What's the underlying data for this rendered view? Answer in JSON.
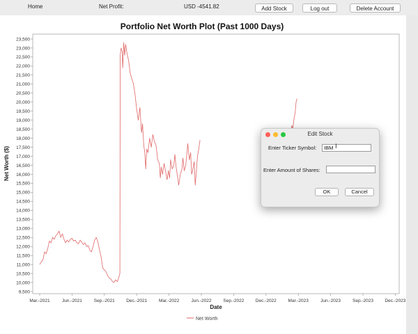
{
  "topbar": {
    "home_label": "Home",
    "net_profit_label": "Net Profit:",
    "net_profit_value": "USD -4541.82",
    "add_stock_label": "Add Stock",
    "logout_label": "Log out",
    "delete_account_label": "Delete Account"
  },
  "chart_data": {
    "type": "line",
    "title": "Portfolio Net Worth Plot (Past 1000 Days)",
    "xlabel": "Date",
    "ylabel": "Net Worth ($)",
    "legend": {
      "placement": "bottom",
      "entries": [
        "Net Worth"
      ]
    },
    "series_color": "#e06666",
    "grid": false,
    "ylim": [
      9500,
      23500
    ],
    "x_ticks": [
      "Mar.-2021",
      "Jun.-2021",
      "Sep.-2021",
      "Dec.-2021",
      "Mar.-2022",
      "Jun.-2022",
      "Sep.-2022",
      "Dec.-2022",
      "Mar.-2023",
      "Jun.-2023",
      "Sep.-2023",
      "Dec.-2023"
    ],
    "y_ticks": [
      "9,500",
      "10,000",
      "10,500",
      "11,000",
      "11,500",
      "12,000",
      "12,500",
      "13,000",
      "13,500",
      "14,000",
      "14,500",
      "15,000",
      "15,500",
      "16,000",
      "16,500",
      "17,000",
      "17,500",
      "18,000",
      "18,500",
      "19,000",
      "19,500",
      "20,000",
      "20,500",
      "21,000",
      "21,500",
      "22,000",
      "22,500",
      "23,000",
      "23,500"
    ],
    "series": [
      {
        "name": "Net Worth",
        "points": [
          [
            0.0,
            11000
          ],
          [
            0.05,
            11150
          ],
          [
            0.1,
            11250
          ],
          [
            0.15,
            11700
          ],
          [
            0.2,
            11600
          ],
          [
            0.25,
            11900
          ],
          [
            0.3,
            12300
          ],
          [
            0.35,
            12200
          ],
          [
            0.4,
            12500
          ],
          [
            0.45,
            12400
          ],
          [
            0.5,
            12600
          ],
          [
            0.55,
            12700
          ],
          [
            0.6,
            12850
          ],
          [
            0.65,
            12500
          ],
          [
            0.7,
            12700
          ],
          [
            0.75,
            12400
          ],
          [
            0.8,
            12200
          ],
          [
            0.85,
            12350
          ],
          [
            0.9,
            12250
          ],
          [
            0.95,
            12400
          ],
          [
            1.0,
            12450
          ],
          [
            1.05,
            12300
          ],
          [
            1.1,
            12350
          ],
          [
            1.15,
            12200
          ],
          [
            1.2,
            12150
          ],
          [
            1.25,
            12350
          ],
          [
            1.3,
            12250
          ],
          [
            1.35,
            12100
          ],
          [
            1.4,
            12200
          ],
          [
            1.45,
            12000
          ],
          [
            1.5,
            12050
          ],
          [
            1.55,
            11800
          ],
          [
            1.6,
            11700
          ],
          [
            1.65,
            12000
          ],
          [
            1.7,
            12350
          ],
          [
            1.75,
            12500
          ],
          [
            1.8,
            12250
          ],
          [
            1.85,
            11800
          ],
          [
            1.9,
            11400
          ],
          [
            1.95,
            10800
          ],
          [
            2.0,
            10700
          ],
          [
            2.05,
            10600
          ],
          [
            2.1,
            10400
          ],
          [
            2.15,
            10250
          ],
          [
            2.2,
            10200
          ],
          [
            2.25,
            10050
          ],
          [
            2.3,
            10000
          ],
          [
            2.35,
            10150
          ],
          [
            2.4,
            10050
          ],
          [
            2.45,
            10300
          ],
          [
            2.48,
            10500
          ],
          [
            2.49,
            22600
          ],
          [
            2.52,
            23000
          ],
          [
            2.55,
            22800
          ],
          [
            2.57,
            21900
          ],
          [
            2.6,
            23300
          ],
          [
            2.63,
            22600
          ],
          [
            2.66,
            23200
          ],
          [
            2.7,
            22700
          ],
          [
            2.75,
            22300
          ],
          [
            2.8,
            21600
          ],
          [
            2.85,
            21300
          ],
          [
            2.9,
            21000
          ],
          [
            2.95,
            20400
          ],
          [
            3.0,
            19600
          ],
          [
            3.05,
            19000
          ],
          [
            3.1,
            19700
          ],
          [
            3.15,
            18300
          ],
          [
            3.18,
            18800
          ],
          [
            3.22,
            17600
          ],
          [
            3.25,
            17200
          ],
          [
            3.28,
            16300
          ],
          [
            3.31,
            17400
          ],
          [
            3.35,
            17200
          ],
          [
            3.4,
            18000
          ],
          [
            3.45,
            17500
          ],
          [
            3.5,
            18200
          ],
          [
            3.55,
            17800
          ],
          [
            3.6,
            17600
          ],
          [
            3.65,
            16800
          ],
          [
            3.7,
            16600
          ],
          [
            3.73,
            15800
          ],
          [
            3.76,
            16400
          ],
          [
            3.8,
            16000
          ],
          [
            3.85,
            16600
          ],
          [
            3.9,
            16100
          ],
          [
            3.94,
            15700
          ],
          [
            3.98,
            16200
          ],
          [
            4.02,
            15800
          ],
          [
            4.05,
            16800
          ],
          [
            4.1,
            16300
          ],
          [
            4.15,
            16500
          ],
          [
            4.18,
            17100
          ],
          [
            4.22,
            16400
          ],
          [
            4.26,
            15900
          ],
          [
            4.3,
            15400
          ],
          [
            4.35,
            16000
          ],
          [
            4.4,
            16300
          ],
          [
            4.43,
            16900
          ],
          [
            4.47,
            16200
          ],
          [
            4.52,
            16500
          ],
          [
            4.58,
            17700
          ],
          [
            4.63,
            16800
          ],
          [
            4.67,
            17200
          ],
          [
            4.7,
            16000
          ],
          [
            4.74,
            16300
          ],
          [
            4.78,
            16700
          ],
          [
            4.81,
            15400
          ],
          [
            4.85,
            16200
          ],
          [
            4.88,
            17000
          ],
          [
            4.92,
            17400
          ],
          [
            4.96,
            17900
          ]
        ]
      },
      {
        "name": "Net Worth",
        "points": [
          [
            7.65,
            17200
          ],
          [
            7.7,
            17600
          ],
          [
            7.75,
            18200
          ],
          [
            7.8,
            18700
          ],
          [
            7.83,
            18500
          ],
          [
            7.86,
            19000
          ],
          [
            7.9,
            19400
          ],
          [
            7.93,
            20000
          ],
          [
            7.96,
            20200
          ]
        ]
      }
    ]
  },
  "dialog": {
    "title": "Edit Stock",
    "ticker_label": "Enter Ticker Symbol:",
    "ticker_value": "IBM",
    "shares_label": "Enter Amount of Shares:",
    "shares_value": "",
    "ok_label": "OK",
    "cancel_label": "Cancel",
    "light_colors": [
      "#ff5f57",
      "#febc2e",
      "#28c840"
    ]
  }
}
